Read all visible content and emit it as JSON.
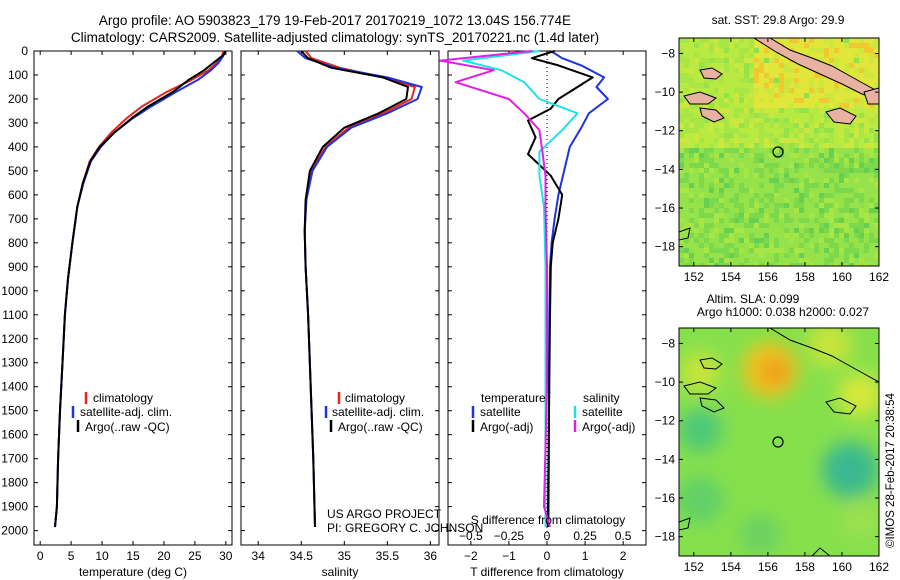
{
  "header": {
    "line1": "Argo profile: AO 5903823_179 19-Feb-2017 20170219_1072 13.04S 156.774E",
    "line2": "Climatology: CARS2009. Satellite-adjusted climatology: synTS_20170221.nc (1.4d later)"
  },
  "side_stamp": "©IMOS 28-Feb-2017 20:38:54",
  "project_note": {
    "line1": "US ARGO PROJECT",
    "line2": "PI: GREGORY C. JOHNSON"
  },
  "colors": {
    "climatology": "#e8251f",
    "satellite": "#1f34d9",
    "argo": "#000000",
    "sat_salinity": "#22e0e8",
    "argo_salinity": "#e020e0"
  },
  "chart_data": [
    {
      "type": "line",
      "id": "temperature-profile",
      "xlabel": "temperature (deg C)",
      "xlim": [
        -1,
        31
      ],
      "xticks": [
        0,
        5,
        10,
        15,
        20,
        25,
        30
      ],
      "ylim": [
        2060,
        0
      ],
      "yticks": [
        0,
        100,
        200,
        300,
        400,
        500,
        600,
        700,
        800,
        900,
        1000,
        1100,
        1200,
        1300,
        1400,
        1500,
        1600,
        1700,
        1800,
        1900,
        2000
      ],
      "legend": [
        "climatology",
        "satellite-adj. clim.",
        "Argo(..raw -QC)"
      ],
      "legend_position": "lower-center",
      "series": [
        {
          "name": "climatology",
          "color": "#e8251f",
          "x": [
            29.6,
            29.4,
            28.5,
            27.2,
            24.5,
            20.5,
            16.5,
            14.0,
            11.5,
            9.5,
            8.0,
            6.9,
            6.0,
            5.2,
            4.5,
            4.0,
            3.6,
            3.2,
            2.9,
            2.7,
            2.4
          ],
          "y": [
            0,
            20,
            50,
            80,
            120,
            170,
            230,
            280,
            340,
            400,
            460,
            550,
            650,
            800,
            950,
            1100,
            1300,
            1500,
            1700,
            1900,
            1985
          ]
        },
        {
          "name": "satellite-adj. clim.",
          "color": "#1f34d9",
          "x": [
            29.8,
            29.6,
            28.8,
            27.6,
            25.5,
            22.0,
            18.0,
            15.0,
            12.0,
            9.8,
            8.2,
            7.0,
            6.0,
            5.2,
            4.5,
            4.0,
            3.6,
            3.2,
            2.9,
            2.7,
            2.4
          ],
          "y": [
            0,
            20,
            50,
            80,
            120,
            170,
            230,
            280,
            340,
            400,
            460,
            550,
            650,
            800,
            950,
            1100,
            1300,
            1500,
            1700,
            1900,
            1985
          ]
        },
        {
          "name": "Argo(..raw -QC)",
          "color": "#000000",
          "x": [
            29.9,
            29.7,
            28.2,
            26.5,
            24.0,
            21.5,
            17.5,
            14.8,
            12.0,
            9.6,
            8.1,
            6.9,
            6.0,
            5.2,
            4.5,
            4.0,
            3.6,
            3.2,
            2.9,
            2.7,
            2.4
          ],
          "y": [
            0,
            15,
            45,
            80,
            120,
            170,
            230,
            280,
            340,
            400,
            460,
            550,
            650,
            800,
            950,
            1100,
            1300,
            1500,
            1700,
            1900,
            1985
          ]
        }
      ]
    },
    {
      "type": "line",
      "id": "salinity-profile",
      "xlabel": "salinity",
      "xlim": [
        33.8,
        36.1
      ],
      "xticks": [
        34,
        34.5,
        35,
        35.5,
        36
      ],
      "xticklabels": [
        "34",
        "34.5",
        "35",
        "35.5",
        "36"
      ],
      "ylim": [
        2060,
        0
      ],
      "legend": [
        "climatology",
        "satellite-adj. clim.",
        "Argo(..raw -QC)"
      ],
      "legend_position": "lower-center",
      "series": [
        {
          "name": "climatology",
          "color": "#e8251f",
          "x": [
            34.55,
            34.62,
            34.95,
            35.45,
            35.82,
            35.78,
            35.45,
            35.05,
            34.78,
            34.62,
            34.56,
            34.54,
            34.55,
            34.58,
            34.61,
            34.64,
            34.66
          ],
          "y": [
            0,
            30,
            70,
            110,
            150,
            200,
            260,
            320,
            400,
            500,
            620,
            750,
            900,
            1100,
            1400,
            1700,
            1985
          ]
        },
        {
          "name": "satellite-adj. clim.",
          "color": "#1f34d9",
          "x": [
            34.45,
            34.55,
            34.9,
            35.5,
            35.9,
            35.85,
            35.5,
            35.08,
            34.8,
            34.63,
            34.56,
            34.54,
            34.55,
            34.58,
            34.61,
            34.64,
            34.66
          ],
          "y": [
            0,
            30,
            70,
            110,
            150,
            200,
            260,
            320,
            400,
            500,
            620,
            750,
            900,
            1100,
            1400,
            1700,
            1985
          ]
        },
        {
          "name": "Argo(..raw -QC)",
          "color": "#000000",
          "x": [
            34.5,
            34.58,
            34.85,
            35.45,
            35.74,
            35.72,
            35.4,
            35.0,
            34.75,
            34.6,
            34.55,
            34.54,
            34.55,
            34.58,
            34.61,
            34.64,
            34.66
          ],
          "y": [
            0,
            30,
            70,
            110,
            150,
            200,
            260,
            320,
            400,
            500,
            620,
            750,
            900,
            1100,
            1400,
            1700,
            1985
          ]
        }
      ]
    },
    {
      "type": "line",
      "id": "difference-profile",
      "xlabel": "T difference from climatology",
      "xlabel_top": "S difference from climatology",
      "xlim": [
        -2.6,
        2.6
      ],
      "xticks": [
        -2,
        -1,
        0,
        1,
        2
      ],
      "s_ticks": [
        -0.5,
        -0.25,
        0,
        0.25,
        0.5
      ],
      "s_ticklabels": [
        "-0.5",
        "-0.25",
        "0",
        "0.25",
        "0.5"
      ],
      "ylim": [
        2060,
        0
      ],
      "legend": {
        "temperature_title": "temperature",
        "salinity_title": "salinity",
        "items": [
          "satellite",
          "Argo(-adj)",
          "satellite",
          "Argo(-adj)"
        ]
      },
      "legend_position": "lower-center",
      "series": [
        {
          "name": "satellite",
          "group": "temperature",
          "color": "#1f34d9",
          "x": [
            0.1,
            0.4,
            0.9,
            1.5,
            1.3,
            1.6,
            1.1,
            0.9,
            0.6,
            0.45,
            0.3,
            0.2,
            0.12,
            0.08,
            0.06,
            0.05,
            0.05,
            0.04
          ],
          "y": [
            0,
            30,
            60,
            110,
            150,
            200,
            260,
            320,
            400,
            500,
            600,
            700,
            800,
            900,
            1100,
            1400,
            1700,
            1985
          ]
        },
        {
          "name": "Argo(-adj)",
          "group": "temperature",
          "color": "#000000",
          "x": [
            0.2,
            -0.4,
            0.3,
            1.2,
            0.8,
            0.3,
            0.1,
            -0.5,
            -0.3,
            -0.5,
            0.1,
            0.4,
            0.3,
            0.15,
            0.1,
            0.08,
            0.06,
            0.04,
            0.02
          ],
          "y": [
            0,
            30,
            60,
            110,
            150,
            200,
            240,
            290,
            360,
            430,
            520,
            600,
            700,
            800,
            900,
            1100,
            1400,
            1700,
            1985
          ]
        },
        {
          "name": "satellite",
          "group": "salinity",
          "color": "#22e0e8",
          "x": [
            -0.05,
            -0.55,
            -0.3,
            -0.15,
            -0.05,
            0.2,
            0.1,
            -0.05,
            -0.05,
            -0.02,
            -0.01,
            -0.01,
            -0.01
          ],
          "y": [
            0,
            40,
            80,
            130,
            200,
            260,
            330,
            420,
            520,
            650,
            900,
            1400,
            1985
          ]
        },
        {
          "name": "Argo(-adj)",
          "group": "salinity",
          "color": "#e020e0",
          "x": [
            -0.1,
            -0.7,
            -0.35,
            -0.6,
            -0.25,
            -0.15,
            -0.05,
            -0.03,
            -0.01,
            -0.01,
            0.0,
            0.0,
            -0.02,
            0.02
          ],
          "y": [
            0,
            40,
            80,
            130,
            200,
            260,
            330,
            420,
            520,
            650,
            900,
            1400,
            1900,
            1985
          ]
        }
      ]
    },
    {
      "type": "heatmap",
      "id": "sst-map",
      "title": "sat. SST: 29.8 Argo: 29.9",
      "xticks": [
        152,
        154,
        156,
        158,
        160,
        162
      ],
      "yticks": [
        -8,
        -10,
        -12,
        -14,
        -16,
        -18
      ],
      "xlim": [
        151.2,
        162
      ],
      "ylim": [
        -19,
        -7.2
      ],
      "float_position": [
        156.774,
        -13.04
      ]
    },
    {
      "type": "heatmap",
      "id": "sla-map",
      "title_line1": "Altim. SLA: 0.099",
      "title_line2": "Argo h1000: 0.038 h2000: 0.027",
      "xticks": [
        152,
        154,
        156,
        158,
        160,
        162
      ],
      "yticks": [
        -8,
        -10,
        -12,
        -14,
        -16,
        -18
      ],
      "xlim": [
        151.2,
        162
      ],
      "ylim": [
        -19,
        -7.2
      ],
      "float_position": [
        156.774,
        -13.04
      ]
    }
  ]
}
